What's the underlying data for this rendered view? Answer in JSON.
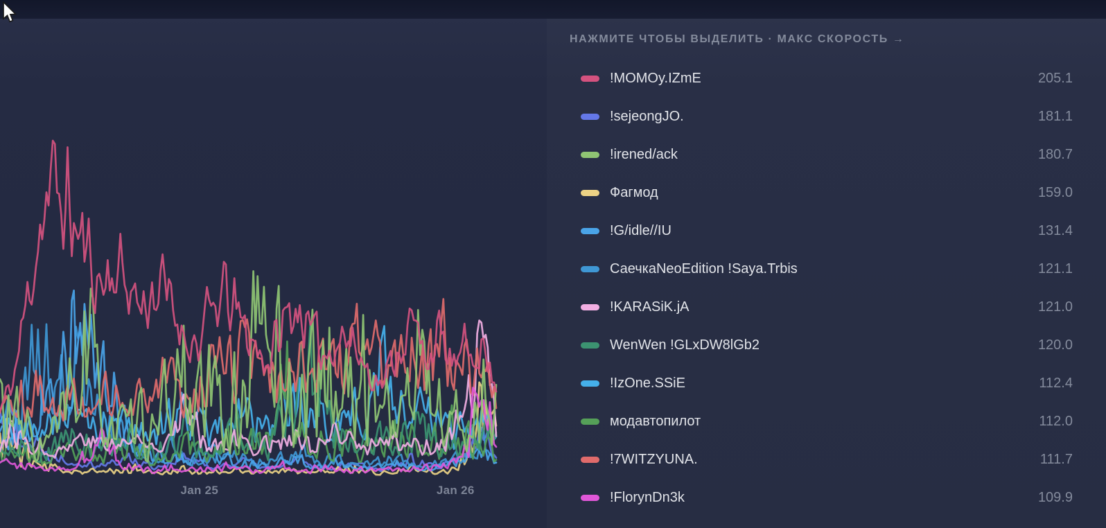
{
  "panel": {
    "header_text": "НАЖМИТЕ ЧТОБЫ ВЫДЕЛИТЬ · МАКС СКОРОСТЬ →"
  },
  "colors": {
    "background": "#232940",
    "topbar": "#151a2e",
    "axis_text": "#7d8496",
    "header_text": "#848b9c",
    "label_text": "#e2e4e9",
    "value_text": "#848b9c"
  },
  "chart_data": {
    "type": "line",
    "title": "",
    "xlabel": "",
    "ylabel": "",
    "ylim": [
      0,
      247
    ],
    "grid": false,
    "legend_position": "right-panel",
    "x_ticks": [
      {
        "label": "Jan 25",
        "pos": 0.402
      },
      {
        "label": "Jan 26",
        "pos": 0.918
      }
    ],
    "draw_order": [
      1,
      3,
      5,
      4,
      8,
      9,
      7,
      6,
      10,
      11,
      2,
      0
    ],
    "series": [
      {
        "name": "!MOMOy.IZmE",
        "max": "205.1",
        "color": "#d4527f",
        "base": 15,
        "tight": 0.58,
        "seed": 11,
        "envelope": [
          45,
          70,
          130,
          190,
          205,
          185,
          160,
          135,
          148,
          138,
          120,
          133,
          124,
          100,
          92,
          118,
          128,
          108,
          92,
          80,
          108,
          122,
          96,
          86,
          102,
          92,
          74,
          64,
          88,
          108,
          86,
          96,
          78,
          88,
          92,
          60
        ]
      },
      {
        "name": "!sejeongJO.",
        "max": "181.1",
        "color": "#6478e8",
        "base": 4,
        "tight": 0.35,
        "seed": 22,
        "envelope": [
          70,
          50,
          35,
          25,
          20,
          16,
          14,
          12,
          14,
          18,
          14,
          10,
          14,
          18,
          14,
          10,
          12,
          16,
          12,
          9,
          12,
          16,
          12,
          9,
          12,
          15,
          11,
          8,
          12,
          16,
          12,
          9,
          14,
          20,
          40,
          25
        ]
      },
      {
        "name": "!irened/ack",
        "max": "180.7",
        "color": "#8fc473",
        "base": 5,
        "tight": 0.12,
        "seed": 33,
        "envelope": [
          85,
          60,
          45,
          35,
          50,
          80,
          135,
          90,
          60,
          45,
          55,
          40,
          90,
          120,
          70,
          95,
          60,
          80,
          150,
          181,
          110,
          60,
          120,
          115,
          90,
          100,
          105,
          90,
          60,
          100,
          135,
          70,
          60,
          50,
          95,
          85
        ]
      },
      {
        "name": "Фагмод",
        "max": "159.0",
        "color": "#ecd285",
        "base": 3,
        "tight": 0.15,
        "seed": 44,
        "envelope": [
          60,
          35,
          22,
          14,
          11,
          9,
          8,
          7,
          9,
          11,
          8,
          6,
          8,
          10,
          6,
          8,
          10,
          8,
          6,
          8,
          10,
          8,
          6,
          8,
          10,
          12,
          8,
          6,
          8,
          10,
          8,
          6,
          12,
          30,
          95,
          40
        ]
      },
      {
        "name": "!G/idle//IU",
        "max": "131.4",
        "color": "#4aa4e8",
        "base": 4,
        "tight": 0.3,
        "seed": 55,
        "envelope": [
          35,
          45,
          55,
          70,
          95,
          131,
          120,
          95,
          75,
          40,
          26,
          20,
          18,
          15,
          20,
          25,
          18,
          14,
          12,
          10,
          14,
          18,
          12,
          10,
          14,
          10,
          8,
          12,
          16,
          12,
          9,
          11,
          14,
          20,
          30,
          15
        ]
      },
      {
        "name": "СаечкаNeoEdition !Saya.Trbis",
        "max": "121.1",
        "color": "#3f97d4",
        "base": 5,
        "tight": 0.25,
        "seed": 66,
        "envelope": [
          50,
          65,
          85,
          105,
          121,
          105,
          85,
          60,
          45,
          30,
          24,
          20,
          26,
          20,
          16,
          22,
          26,
          20,
          16,
          14,
          18,
          24,
          18,
          14,
          18,
          14,
          12,
          16,
          20,
          15,
          12,
          14,
          18,
          24,
          30,
          18
        ]
      },
      {
        "name": "!KARASiK.jA",
        "max": "121.0",
        "color": "#f2afe3",
        "base": 8,
        "tight": 0.3,
        "seed": 77,
        "envelope": [
          30,
          38,
          30,
          26,
          22,
          30,
          38,
          30,
          26,
          34,
          30,
          26,
          45,
          60,
          40,
          30,
          34,
          30,
          26,
          30,
          34,
          30,
          26,
          30,
          34,
          30,
          26,
          30,
          34,
          30,
          26,
          30,
          38,
          60,
          121,
          40
        ]
      },
      {
        "name": "WenWen !GLxDW8lGb2",
        "max": "120.0",
        "color": "#3c9371",
        "base": 6,
        "tight": 0.2,
        "seed": 88,
        "envelope": [
          25,
          35,
          28,
          22,
          30,
          40,
          30,
          24,
          30,
          36,
          28,
          24,
          34,
          44,
          32,
          26,
          36,
          46,
          34,
          28,
          60,
          80,
          120,
          70,
          40,
          34,
          44,
          34,
          28,
          38,
          48,
          36,
          30,
          40,
          50,
          35
        ]
      },
      {
        "name": "!IzOne.SSiE",
        "max": "112.4",
        "color": "#45b0ea",
        "base": 10,
        "tight": 0.25,
        "seed": 99,
        "envelope": [
          45,
          60,
          45,
          35,
          50,
          65,
          50,
          40,
          45,
          55,
          42,
          36,
          50,
          64,
          46,
          38,
          52,
          66,
          48,
          40,
          55,
          70,
          52,
          42,
          56,
          70,
          52,
          112,
          70,
          52,
          60,
          46,
          38,
          50,
          62,
          44
        ]
      },
      {
        "name": "модавтопилот",
        "max": "112.0",
        "color": "#55a058",
        "base": 5,
        "tight": 0.18,
        "seed": 111,
        "envelope": [
          20,
          30,
          24,
          18,
          26,
          34,
          26,
          20,
          28,
          36,
          26,
          22,
          30,
          40,
          28,
          24,
          34,
          44,
          30,
          26,
          112,
          60,
          36,
          28,
          38,
          30,
          24,
          34,
          44,
          32,
          26,
          36,
          46,
          34,
          28,
          22
        ]
      },
      {
        "name": "!7WITZYUNA.",
        "max": "111.7",
        "color": "#e06b6b",
        "base": 18,
        "tight": 0.3,
        "seed": 122,
        "envelope": [
          50,
          68,
          58,
          78,
          68,
          58,
          50,
          68,
          60,
          50,
          60,
          70,
          80,
          62,
          72,
          90,
          80,
          100,
          90,
          80,
          100,
          90,
          112,
          100,
          92,
          102,
          110,
          96,
          86,
          100,
          92,
          105,
          95,
          86,
          76,
          60
        ]
      },
      {
        "name": "!FlorynDn3k",
        "max": "109.9",
        "color": "#e057d8",
        "base": 3,
        "tight": 0.25,
        "seed": 133,
        "envelope": [
          12,
          16,
          12,
          10,
          8,
          12,
          20,
          40,
          24,
          12,
          10,
          8,
          12,
          10,
          8,
          10,
          12,
          10,
          8,
          10,
          12,
          10,
          8,
          12,
          10,
          8,
          10,
          12,
          10,
          8,
          12,
          10,
          14,
          28,
          110,
          55
        ]
      }
    ]
  }
}
